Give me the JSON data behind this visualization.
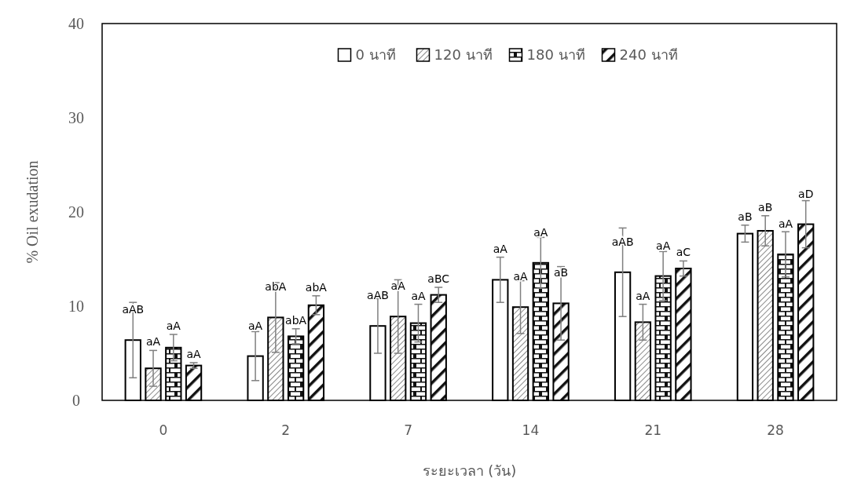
{
  "chart_data": {
    "type": "bar",
    "xlabel": "ระยะเวลา (วัน)",
    "ylabel": "% Oil exudation",
    "categories": [
      "0",
      "2",
      "7",
      "14",
      "21",
      "28"
    ],
    "ylim": [
      0,
      40
    ],
    "yticks": [
      0,
      10,
      20,
      30,
      40
    ],
    "grid": false,
    "legend": "top",
    "series": [
      {
        "name": "0 นาที",
        "color": "#ffffff",
        "values": [
          6.4,
          4.7,
          7.9,
          12.8,
          13.6,
          17.7
        ],
        "errors": [
          4.0,
          2.6,
          2.9,
          2.4,
          4.7,
          0.9
        ],
        "value_labels": [
          "aAB",
          "aA",
          "aAB",
          "aA",
          "aAB",
          "aB"
        ]
      },
      {
        "name": "120 นาที",
        "color": "#000000",
        "values": [
          3.4,
          8.8,
          8.9,
          9.9,
          8.3,
          18.0
        ],
        "errors": [
          1.9,
          3.7,
          3.9,
          2.8,
          1.9,
          1.6
        ],
        "value_labels": [
          "aA",
          "abA",
          "aA",
          "aA",
          "aA",
          "aB"
        ]
      },
      {
        "name": "180 นาที",
        "color": "#000000",
        "values": [
          5.6,
          6.8,
          8.2,
          14.6,
          13.2,
          15.5
        ],
        "errors": [
          1.4,
          0.8,
          2.0,
          2.7,
          2.6,
          2.4
        ],
        "value_labels": [
          "aA",
          "abA",
          "aA",
          "aA",
          "aA",
          "aA"
        ]
      },
      {
        "name": "240 นาที",
        "color": "#000000",
        "values": [
          3.7,
          10.1,
          11.2,
          10.3,
          14.0,
          18.7
        ],
        "errors": [
          0.3,
          1.0,
          0.8,
          3.9,
          0.8,
          2.5
        ],
        "value_labels": [
          "aA",
          "abA",
          "aBC",
          "aB",
          "aC",
          "aD"
        ]
      }
    ]
  }
}
